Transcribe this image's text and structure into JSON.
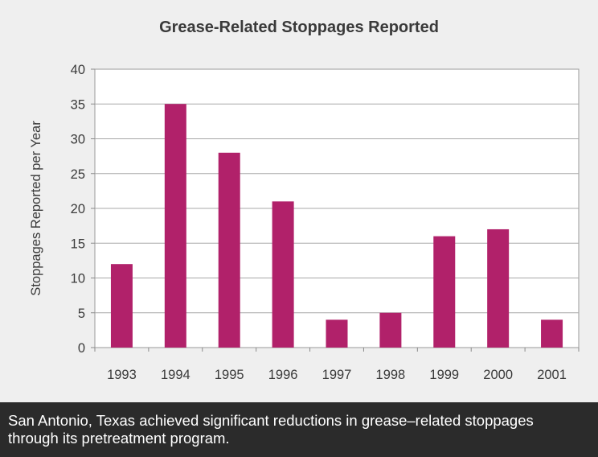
{
  "chart_data": {
    "type": "bar",
    "title": "Grease-Related Stoppages Reported",
    "xlabel": "",
    "ylabel": "Stoppages Reported per Year",
    "categories": [
      "1993",
      "1994",
      "1995",
      "1996",
      "1997",
      "1998",
      "1999",
      "2000",
      "2001"
    ],
    "values": [
      12,
      35,
      28,
      21,
      4,
      5,
      16,
      17,
      4
    ],
    "ylim": [
      0,
      40
    ],
    "yticks": [
      0,
      5,
      10,
      15,
      20,
      25,
      30,
      35,
      40
    ],
    "grid": true,
    "legend": "none",
    "bar_color": "#b1216a"
  },
  "caption": "San Antonio, Texas achieved significant reductions in grease–related stoppages through its pretreatment program."
}
